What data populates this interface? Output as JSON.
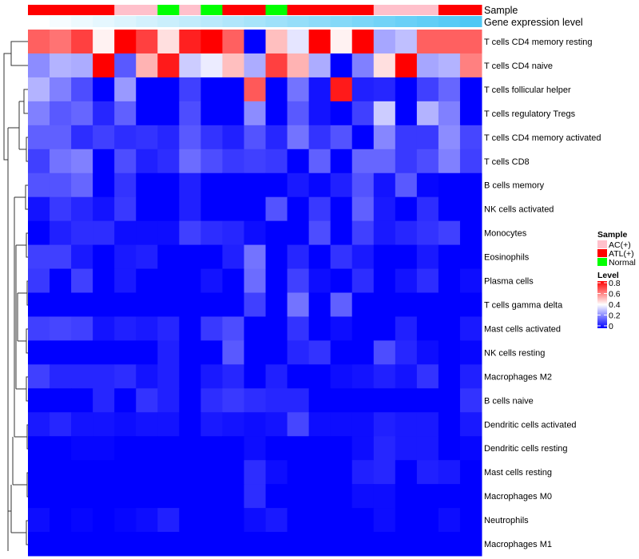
{
  "chart_data": {
    "type": "heatmap",
    "annotations": [
      {
        "name": "Sample",
        "type": "categorical",
        "values": [
          "ATL(+)",
          "ATL(+)",
          "ATL(+)",
          "ATL(+)",
          "AC(+)",
          "AC(+)",
          "Normal",
          "AC(+)",
          "Normal",
          "ATL(+)",
          "ATL(+)",
          "Normal",
          "ATL(+)",
          "ATL(+)",
          "ATL(+)",
          "ATL(+)",
          "AC(+)",
          "AC(+)",
          "AC(+)",
          "ATL(+)",
          "ATL(+)"
        ]
      },
      {
        "name": "Gene expression level",
        "type": "continuous",
        "values": [
          0,
          0.05,
          0.1,
          0.15,
          0.2,
          0.25,
          0.3,
          0.35,
          0.4,
          0.45,
          0.5,
          0.55,
          0.6,
          0.65,
          0.7,
          0.75,
          0.8,
          0.85,
          0.9,
          0.95,
          1.0
        ]
      }
    ],
    "rows": [
      "T cells CD4 memory resting",
      "T cells CD4 naive",
      "T cells follicular helper",
      "T cells regulatory  Tregs",
      "T cells CD4 memory activated",
      "T cells CD8",
      "B cells memory",
      "NK cells activated",
      "Monocytes",
      "Eosinophils",
      "Plasma cells",
      "T cells gamma delta",
      "Mast cells activated",
      "NK cells resting",
      "Macrophages M2",
      "B cells naive",
      "Dendritic cells activated",
      "Dendritic cells resting",
      "Mast cells resting",
      "Macrophages M0",
      "Neutrophils",
      "Macrophages M1"
    ],
    "values": [
      [
        0.65,
        0.62,
        0.7,
        0.42,
        0.8,
        0.7,
        0.45,
        0.75,
        0.8,
        0.65,
        0.0,
        0.5,
        0.36,
        0.8,
        0.42,
        0.8,
        0.26,
        0.3,
        0.65,
        0.65,
        0.65
      ],
      [
        0.22,
        0.28,
        0.27,
        0.8,
        0.14,
        0.52,
        0.76,
        0.32,
        0.37,
        0.5,
        0.27,
        0.7,
        0.52,
        0.27,
        0.0,
        0.2,
        0.45,
        0.8,
        0.26,
        0.28,
        0.6
      ],
      [
        0.28,
        0.2,
        0.12,
        0.0,
        0.24,
        0,
        0,
        0.1,
        0,
        0,
        0.66,
        0,
        0.18,
        0.03,
        0.76,
        0.05,
        0.06,
        0,
        0.1,
        0.16,
        0
      ],
      [
        0.2,
        0.14,
        0.16,
        0.06,
        0.15,
        0,
        0,
        0.12,
        0,
        0,
        0.22,
        0,
        0.14,
        0.03,
        0,
        0.1,
        0.32,
        0,
        0.28,
        0.2,
        0
      ],
      [
        0.15,
        0.15,
        0.07,
        0.1,
        0.07,
        0.08,
        0.06,
        0.14,
        0.08,
        0.05,
        0.13,
        0.06,
        0.18,
        0.08,
        0.13,
        0,
        0.21,
        0.09,
        0.09,
        0.22,
        0.11
      ],
      [
        0.1,
        0.18,
        0.2,
        0,
        0.12,
        0.05,
        0.07,
        0.17,
        0.12,
        0.09,
        0.1,
        0.09,
        0,
        0.15,
        0,
        0.16,
        0.16,
        0.09,
        0.12,
        0.2,
        0.1
      ],
      [
        0.13,
        0.13,
        0.16,
        0,
        0.08,
        0,
        0,
        0.05,
        0,
        0,
        0,
        0,
        0.04,
        0.01,
        0.05,
        0.13,
        0.03,
        0.14,
        0.01,
        0,
        0
      ],
      [
        0.03,
        0.09,
        0.06,
        0.03,
        0.09,
        0,
        0,
        0.05,
        0,
        0,
        0,
        0.13,
        0,
        0.09,
        0,
        0.15,
        0.04,
        0,
        0.07,
        0,
        0
      ],
      [
        0,
        0.05,
        0.07,
        0.07,
        0.02,
        0.02,
        0.02,
        0.1,
        0.07,
        0.06,
        0.02,
        0,
        0,
        0.12,
        0,
        0.1,
        0.04,
        0.06,
        0.08,
        0.1,
        0
      ],
      [
        0.1,
        0.1,
        0.04,
        0,
        0.04,
        0.05,
        0,
        0,
        0,
        0.05,
        0.18,
        0,
        0.06,
        0,
        0.08,
        0.04,
        0,
        0,
        0.04,
        0,
        0
      ],
      [
        0.09,
        0,
        0.1,
        0,
        0.04,
        0,
        0,
        0,
        0.03,
        0,
        0.17,
        0,
        0.1,
        0.02,
        0,
        0.07,
        0,
        0.03,
        0.07,
        0,
        0.02
      ],
      [
        0,
        0,
        0,
        0,
        0,
        0,
        0,
        0,
        0,
        0,
        0.1,
        0,
        0.18,
        0,
        0.15,
        0,
        0,
        0,
        0,
        0,
        0
      ],
      [
        0.1,
        0.11,
        0.1,
        0.03,
        0.05,
        0.04,
        0.06,
        0,
        0.09,
        0.12,
        0,
        0,
        0.08,
        0,
        0.02,
        0,
        0,
        0.05,
        0,
        0,
        0.04
      ],
      [
        0,
        0,
        0,
        0,
        0,
        0,
        0.05,
        0,
        0,
        0.14,
        0,
        0,
        0.06,
        0.08,
        0,
        0,
        0.12,
        0.06,
        0.02,
        0,
        0.01
      ],
      [
        0.1,
        0.06,
        0.06,
        0.06,
        0.07,
        0.03,
        0.05,
        0,
        0.04,
        0.06,
        0,
        0.05,
        0,
        0,
        0.02,
        0.03,
        0.05,
        0.03,
        0.08,
        0,
        0.05
      ],
      [
        0,
        0,
        0,
        0.06,
        0,
        0.08,
        0.05,
        0,
        0.07,
        0.09,
        0.07,
        0.06,
        0.06,
        0,
        0,
        0,
        0,
        0,
        0,
        0,
        0.08
      ],
      [
        0.04,
        0.06,
        0.03,
        0.03,
        0.02,
        0.03,
        0.03,
        0,
        0.04,
        0.03,
        0.02,
        0.03,
        0.11,
        0.02,
        0.02,
        0.02,
        0.05,
        0.04,
        0.04,
        0,
        0.04
      ],
      [
        0,
        0,
        0.01,
        0.01,
        0,
        0,
        0,
        0,
        0,
        0,
        0.02,
        0,
        0,
        0,
        0,
        0.02,
        0.06,
        0.04,
        0.04,
        0,
        0.01
      ],
      [
        0,
        0,
        0,
        0,
        0,
        0,
        0,
        0,
        0,
        0,
        0.07,
        0.02,
        0,
        0,
        0,
        0.05,
        0.06,
        0,
        0.05,
        0.04,
        0
      ],
      [
        0,
        0,
        0,
        0,
        0,
        0,
        0,
        0,
        0,
        0,
        0.07,
        0,
        0,
        0,
        0,
        0.02,
        0.02,
        0,
        0,
        0,
        0
      ],
      [
        0.02,
        0,
        0.01,
        0,
        0.01,
        0.02,
        0.05,
        0,
        0,
        0,
        0.02,
        0.04,
        0,
        0,
        0,
        0,
        0.02,
        0,
        0,
        0.02,
        0
      ],
      [
        0,
        0,
        0,
        0,
        0,
        0,
        0,
        0,
        0,
        0,
        0,
        0,
        0,
        0,
        0,
        0,
        0,
        0,
        0,
        0,
        0
      ]
    ],
    "color_scale": {
      "min": 0,
      "mid": 0.4,
      "max": 0.8,
      "low": "#0000FF",
      "midColor": "#FFFFFF",
      "high": "#FF0000"
    },
    "legend": {
      "sample_title": "Sample",
      "sample_items": [
        {
          "label": "AC(+)",
          "color": "#FFC0CB"
        },
        {
          "label": "ATL(+)",
          "color": "#FF0000"
        },
        {
          "label": "Normal",
          "color": "#00FF00"
        }
      ],
      "level_title": "Level",
      "level_ticks": [
        "0.8",
        "0.6",
        "0.4",
        "0.2",
        "0"
      ],
      "placement": "right"
    },
    "gene_expression_colors": {
      "low": "#FFFFFF",
      "high": "#4FC8F5"
    },
    "row_dendrogram": true
  }
}
